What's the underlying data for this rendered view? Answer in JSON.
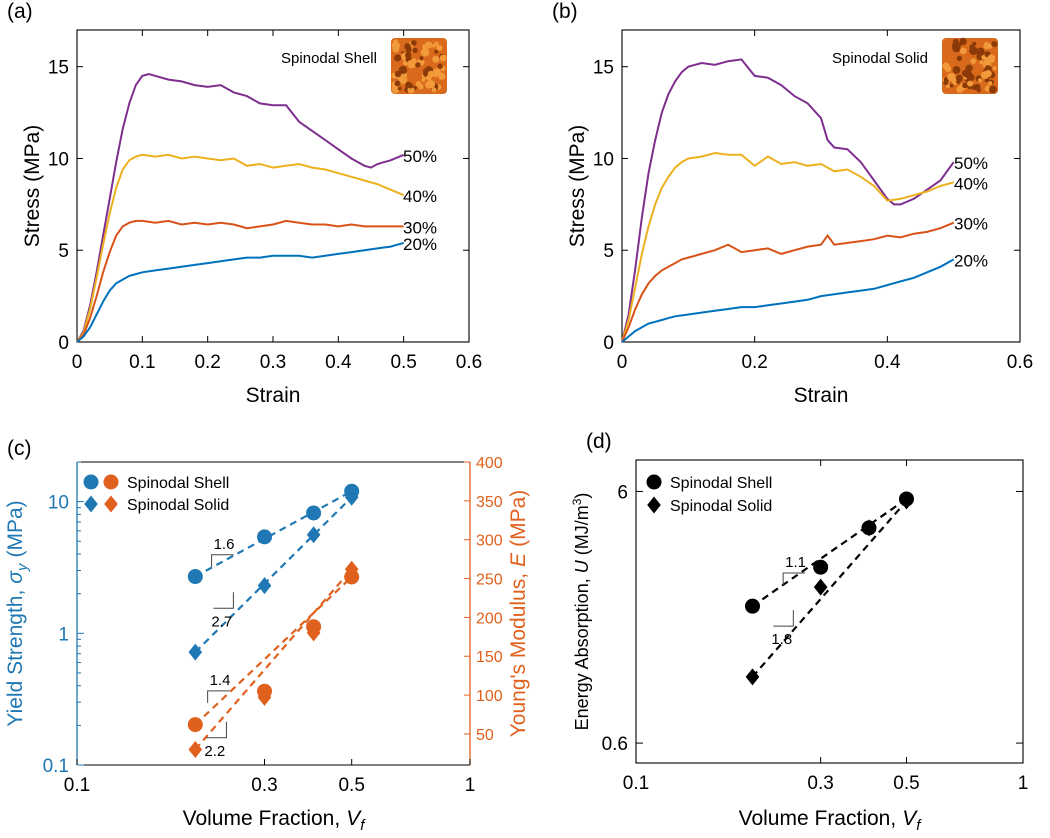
{
  "chart_data": [
    {
      "panel": "a",
      "panel_label": "(a)",
      "type": "line",
      "annotation": "Spinodal Shell",
      "xlabel": "Strain",
      "ylabel": "Stress (MPa)",
      "xlim": [
        0,
        0.6
      ],
      "ylim": [
        0,
        17
      ],
      "xticks": [
        0,
        0.1,
        0.2,
        0.3,
        0.4,
        0.5,
        0.6
      ],
      "xtick_labels": [
        "0",
        "0.1",
        "0.2",
        "0.3",
        "0.4",
        "0.5",
        "0.6"
      ],
      "yticks": [
        0,
        5,
        10,
        15
      ],
      "ytick_labels": [
        "0",
        "5",
        "10",
        "15"
      ],
      "grid": false,
      "series": [
        {
          "name": "50%",
          "color": "#7E2F8E",
          "x": [
            0,
            0.01,
            0.02,
            0.03,
            0.04,
            0.05,
            0.06,
            0.07,
            0.08,
            0.09,
            0.1,
            0.11,
            0.12,
            0.14,
            0.16,
            0.18,
            0.2,
            0.22,
            0.24,
            0.26,
            0.28,
            0.3,
            0.32,
            0.34,
            0.36,
            0.38,
            0.4,
            0.42,
            0.44,
            0.45,
            0.46,
            0.48,
            0.5
          ],
          "y": [
            0,
            0.6,
            2.0,
            3.8,
            5.8,
            7.8,
            9.8,
            11.6,
            13.0,
            14.0,
            14.5,
            14.6,
            14.5,
            14.3,
            14.2,
            14.0,
            13.9,
            14.0,
            13.6,
            13.4,
            13.0,
            12.9,
            12.9,
            12.0,
            11.5,
            11.0,
            10.5,
            10.0,
            9.6,
            9.5,
            9.7,
            9.9,
            10.2
          ]
        },
        {
          "name": "40%",
          "color": "#EDB120",
          "x": [
            0,
            0.01,
            0.02,
            0.03,
            0.04,
            0.05,
            0.06,
            0.07,
            0.08,
            0.09,
            0.1,
            0.12,
            0.14,
            0.16,
            0.18,
            0.2,
            0.22,
            0.24,
            0.26,
            0.28,
            0.3,
            0.32,
            0.34,
            0.36,
            0.38,
            0.4,
            0.42,
            0.44,
            0.46,
            0.48,
            0.5
          ],
          "y": [
            0,
            0.5,
            1.8,
            3.5,
            5.3,
            7.0,
            8.4,
            9.4,
            9.9,
            10.1,
            10.2,
            10.1,
            10.2,
            10.0,
            10.1,
            10.0,
            9.9,
            10.0,
            9.6,
            9.7,
            9.5,
            9.6,
            9.7,
            9.5,
            9.4,
            9.2,
            9.0,
            8.8,
            8.6,
            8.3,
            8.0
          ]
        },
        {
          "name": "30%",
          "color": "#D95319",
          "x": [
            0,
            0.01,
            0.02,
            0.03,
            0.04,
            0.05,
            0.06,
            0.07,
            0.08,
            0.09,
            0.1,
            0.12,
            0.14,
            0.16,
            0.18,
            0.2,
            0.22,
            0.24,
            0.26,
            0.28,
            0.3,
            0.32,
            0.34,
            0.36,
            0.38,
            0.4,
            0.42,
            0.44,
            0.46,
            0.48,
            0.5
          ],
          "y": [
            0,
            0.4,
            1.3,
            2.5,
            3.8,
            4.9,
            5.8,
            6.3,
            6.5,
            6.6,
            6.6,
            6.5,
            6.6,
            6.4,
            6.5,
            6.4,
            6.5,
            6.4,
            6.2,
            6.3,
            6.4,
            6.6,
            6.5,
            6.4,
            6.4,
            6.3,
            6.4,
            6.3,
            6.3,
            6.3,
            6.3
          ]
        },
        {
          "name": "20%",
          "color": "#0072BD",
          "x": [
            0,
            0.01,
            0.02,
            0.03,
            0.04,
            0.05,
            0.06,
            0.07,
            0.08,
            0.09,
            0.1,
            0.12,
            0.14,
            0.16,
            0.18,
            0.2,
            0.22,
            0.24,
            0.26,
            0.28,
            0.3,
            0.32,
            0.34,
            0.36,
            0.38,
            0.4,
            0.42,
            0.44,
            0.46,
            0.48,
            0.5
          ],
          "y": [
            0,
            0.3,
            0.8,
            1.5,
            2.2,
            2.8,
            3.2,
            3.4,
            3.6,
            3.7,
            3.8,
            3.9,
            4.0,
            4.1,
            4.2,
            4.3,
            4.4,
            4.5,
            4.6,
            4.6,
            4.7,
            4.7,
            4.7,
            4.6,
            4.7,
            4.8,
            4.9,
            5.0,
            5.1,
            5.2,
            5.4
          ]
        }
      ]
    },
    {
      "panel": "b",
      "panel_label": "(b)",
      "type": "line",
      "annotation": "Spinodal Solid",
      "xlabel": "Strain",
      "ylabel": "Stress (MPa)",
      "xlim": [
        0,
        0.6
      ],
      "ylim": [
        0,
        17
      ],
      "xticks": [
        0,
        0.2,
        0.4,
        0.6
      ],
      "xtick_labels": [
        "0",
        "0.2",
        "0.4",
        "0.6"
      ],
      "yticks": [
        0,
        5,
        10,
        15
      ],
      "ytick_labels": [
        "0",
        "5",
        "10",
        "15"
      ],
      "grid": false,
      "series": [
        {
          "name": "50%",
          "color": "#7E2F8E",
          "x": [
            0,
            0.01,
            0.02,
            0.03,
            0.04,
            0.05,
            0.06,
            0.07,
            0.08,
            0.09,
            0.1,
            0.12,
            0.14,
            0.16,
            0.18,
            0.2,
            0.22,
            0.24,
            0.26,
            0.28,
            0.3,
            0.31,
            0.32,
            0.34,
            0.36,
            0.38,
            0.4,
            0.41,
            0.42,
            0.44,
            0.46,
            0.48,
            0.5
          ],
          "y": [
            0,
            1.5,
            4.0,
            6.8,
            9.2,
            11.0,
            12.5,
            13.5,
            14.2,
            14.7,
            15.0,
            15.2,
            15.1,
            15.3,
            15.4,
            14.5,
            14.4,
            14.0,
            13.4,
            13.0,
            12.2,
            11.0,
            10.6,
            10.5,
            9.8,
            8.8,
            7.8,
            7.5,
            7.5,
            7.8,
            8.3,
            8.8,
            9.8
          ]
        },
        {
          "name": "40%",
          "color": "#EDB120",
          "x": [
            0,
            0.01,
            0.02,
            0.03,
            0.04,
            0.05,
            0.06,
            0.07,
            0.08,
            0.09,
            0.1,
            0.12,
            0.14,
            0.16,
            0.18,
            0.2,
            0.22,
            0.24,
            0.26,
            0.28,
            0.3,
            0.32,
            0.34,
            0.36,
            0.38,
            0.4,
            0.42,
            0.44,
            0.46,
            0.48,
            0.5
          ],
          "y": [
            0,
            1.2,
            3.0,
            4.8,
            6.3,
            7.5,
            8.4,
            9.0,
            9.5,
            9.8,
            10.0,
            10.1,
            10.3,
            10.2,
            10.2,
            9.6,
            10.1,
            9.7,
            9.8,
            9.6,
            9.7,
            9.3,
            9.4,
            9.0,
            8.5,
            7.7,
            7.8,
            8.0,
            8.2,
            8.5,
            8.7
          ]
        },
        {
          "name": "30%",
          "color": "#D95319",
          "x": [
            0,
            0.01,
            0.02,
            0.03,
            0.04,
            0.05,
            0.06,
            0.07,
            0.08,
            0.09,
            0.1,
            0.12,
            0.14,
            0.16,
            0.17,
            0.18,
            0.2,
            0.22,
            0.24,
            0.26,
            0.28,
            0.3,
            0.31,
            0.32,
            0.34,
            0.36,
            0.38,
            0.4,
            0.42,
            0.44,
            0.46,
            0.48,
            0.5
          ],
          "y": [
            0,
            0.8,
            1.8,
            2.6,
            3.2,
            3.6,
            3.9,
            4.1,
            4.3,
            4.5,
            4.6,
            4.8,
            5.0,
            5.3,
            5.1,
            4.9,
            5.0,
            5.1,
            4.8,
            5.0,
            5.2,
            5.3,
            5.8,
            5.3,
            5.4,
            5.5,
            5.6,
            5.8,
            5.7,
            5.9,
            6.0,
            6.2,
            6.5
          ]
        },
        {
          "name": "20%",
          "color": "#0072BD",
          "x": [
            0,
            0.01,
            0.02,
            0.03,
            0.04,
            0.05,
            0.06,
            0.07,
            0.08,
            0.1,
            0.12,
            0.14,
            0.16,
            0.18,
            0.2,
            0.22,
            0.24,
            0.26,
            0.28,
            0.3,
            0.32,
            0.34,
            0.36,
            0.38,
            0.4,
            0.42,
            0.44,
            0.46,
            0.48,
            0.5
          ],
          "y": [
            0,
            0.3,
            0.6,
            0.8,
            1.0,
            1.1,
            1.2,
            1.3,
            1.4,
            1.5,
            1.6,
            1.7,
            1.8,
            1.9,
            1.9,
            2.0,
            2.1,
            2.2,
            2.3,
            2.5,
            2.6,
            2.7,
            2.8,
            2.9,
            3.1,
            3.3,
            3.5,
            3.8,
            4.1,
            4.5
          ]
        }
      ]
    },
    {
      "panel": "c",
      "panel_label": "(c)",
      "type": "scatter",
      "xlabel": "Volume Fraction, V_f",
      "xlabel_text": "Volume Fraction,",
      "xlabel_var": "V",
      "xlabel_sub": "f",
      "ylabel_left_text": "Yield Strength,",
      "ylabel_left_var": "σ",
      "ylabel_left_sub": "y",
      "ylabel_left_unit": "(MPa)",
      "ylabel_right_text": "Young's Modulus,",
      "ylabel_right_var": "E",
      "ylabel_right_unit": "(MPa)",
      "xscale": "log",
      "yscale_left": "log",
      "yscale_right": "linear",
      "xlim": [
        0.1,
        1
      ],
      "ylim_left": [
        0.1,
        20
      ],
      "ylim_right": [
        10,
        400
      ],
      "xticks": [
        0.1,
        0.3,
        0.5,
        1
      ],
      "xtick_labels": [
        "0.1",
        "0.3",
        "0.5",
        "1"
      ],
      "yticks_left": [
        0.1,
        1,
        10
      ],
      "ytick_labels_left": [
        "0.1",
        "1",
        "10"
      ],
      "yticks_right": [
        50,
        100,
        150,
        200,
        250,
        300,
        350,
        400
      ],
      "ytick_labels_right": [
        "50",
        "100",
        "150",
        "200",
        "250",
        "300",
        "350",
        "400"
      ],
      "left_axis_color": "#1F78B4",
      "right_axis_color": "#E0601E",
      "legend": [
        "Spinodal Shell",
        "Spinodal Solid"
      ],
      "legend_position": "top-left",
      "series": [
        {
          "name": "Spinodal Shell",
          "quantity": "yield strength",
          "axis": "left",
          "marker": "circle",
          "color": "#1F78B4",
          "x": [
            0.2,
            0.3,
            0.4,
            0.5
          ],
          "y": [
            2.7,
            5.4,
            8.2,
            12.0
          ]
        },
        {
          "name": "Spinodal Solid",
          "quantity": "yield strength",
          "axis": "left",
          "marker": "diamond",
          "color": "#1F78B4",
          "x": [
            0.2,
            0.3,
            0.4,
            0.5
          ],
          "y": [
            0.72,
            2.3,
            5.6,
            10.8
          ]
        },
        {
          "name": "Spinodal Shell",
          "quantity": "Young's modulus",
          "axis": "right",
          "marker": "circle",
          "color": "#E0601E",
          "x": [
            0.2,
            0.3,
            0.4,
            0.5
          ],
          "y": [
            62,
            105,
            188,
            252
          ]
        },
        {
          "name": "Spinodal Solid",
          "quantity": "Young's modulus",
          "axis": "right",
          "marker": "diamond",
          "color": "#E0601E",
          "x": [
            0.2,
            0.3,
            0.4,
            0.5
          ],
          "y": [
            30,
            97,
            180,
            262
          ]
        }
      ],
      "annotations": [
        {
          "text": "1.6",
          "slope": 1.6,
          "axis": "left",
          "x": 0.22,
          "y": 3.2,
          "placement": "above"
        },
        {
          "text": "2.7",
          "slope": 2.7,
          "axis": "left",
          "x": 0.25,
          "y": 1.55,
          "placement": "below"
        },
        {
          "text": "1.4",
          "slope": 1.4,
          "axis": "right",
          "x": 0.215,
          "y": 90,
          "placement": "above"
        },
        {
          "text": "2.2",
          "slope": 2.2,
          "axis": "right",
          "x": 0.24,
          "y": 45,
          "placement": "below"
        }
      ]
    },
    {
      "panel": "d",
      "panel_label": "(d)",
      "type": "scatter",
      "xlabel": "Volume Fraction, V_f",
      "xlabel_text": "Volume Fraction,",
      "xlabel_var": "V",
      "xlabel_sub": "f",
      "ylabel": "Energy Absorption, U (MJ/m^3)",
      "ylabel_text": "Energy Absorption,",
      "ylabel_var": "U",
      "ylabel_unit_base": "(MJ/m",
      "ylabel_unit_sup": "3",
      "ylabel_unit_close": ")",
      "xscale": "log",
      "yscale": "log",
      "xlim": [
        0.1,
        1
      ],
      "ylim": [
        0.5,
        8
      ],
      "xticks": [
        0.1,
        0.3,
        0.5,
        1
      ],
      "xtick_labels": [
        "0.1",
        "0.3",
        "0.5",
        "1"
      ],
      "yticks": [
        0.6,
        6
      ],
      "ytick_labels": [
        "0.6",
        "6"
      ],
      "legend": [
        "Spinodal Shell",
        "Spinodal Solid"
      ],
      "legend_position": "top-left",
      "series": [
        {
          "name": "Spinodal Shell",
          "marker": "circle",
          "color": "#000000",
          "x": [
            0.2,
            0.3,
            0.4,
            0.5
          ],
          "y": [
            2.1,
            3.0,
            4.3,
            5.6
          ]
        },
        {
          "name": "Spinodal Solid",
          "marker": "diamond",
          "color": "#000000",
          "x": [
            0.2,
            0.3,
            0.4,
            0.5
          ],
          "y": [
            1.1,
            2.5,
            4.3,
            5.5
          ]
        }
      ],
      "annotations": [
        {
          "text": "1.1",
          "slope": 1.1,
          "x": 0.24,
          "y": 2.55,
          "placement": "above"
        },
        {
          "text": "1.8",
          "slope": 1.8,
          "x": 0.255,
          "y": 1.75,
          "placement": "below"
        }
      ]
    }
  ]
}
